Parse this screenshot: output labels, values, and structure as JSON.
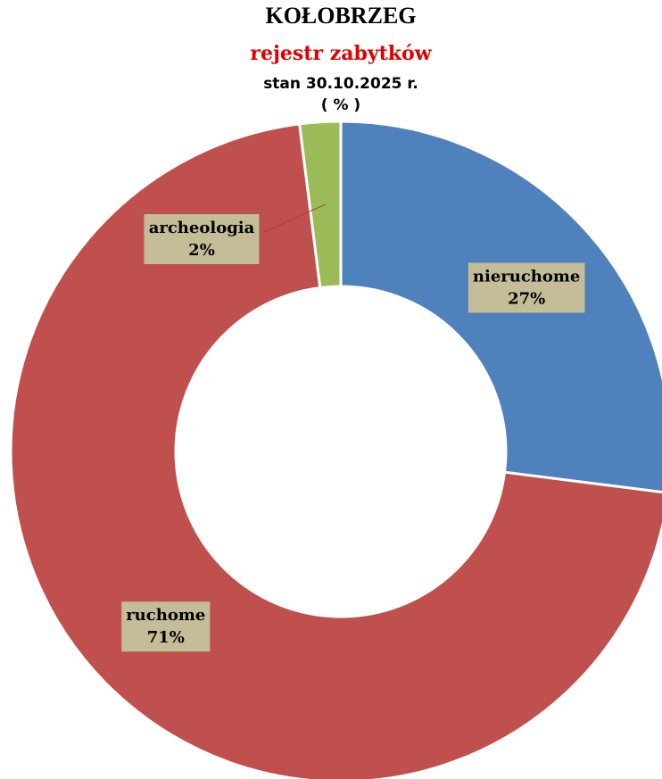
{
  "chart_data": {
    "type": "donut",
    "title": "KOŁOBRZEG",
    "subtitle": "rejestr zabytków",
    "date_note": "stan 30.10.2025 r.",
    "unit_note": "( % )",
    "categories": [
      "nieruchome",
      "ruchome",
      "archeologia"
    ],
    "values": [
      27,
      71,
      2
    ],
    "value_labels": [
      "27%",
      "71%",
      "2%"
    ],
    "colors": [
      "#4f81bd",
      "#c0504d",
      "#9bbb59"
    ]
  }
}
